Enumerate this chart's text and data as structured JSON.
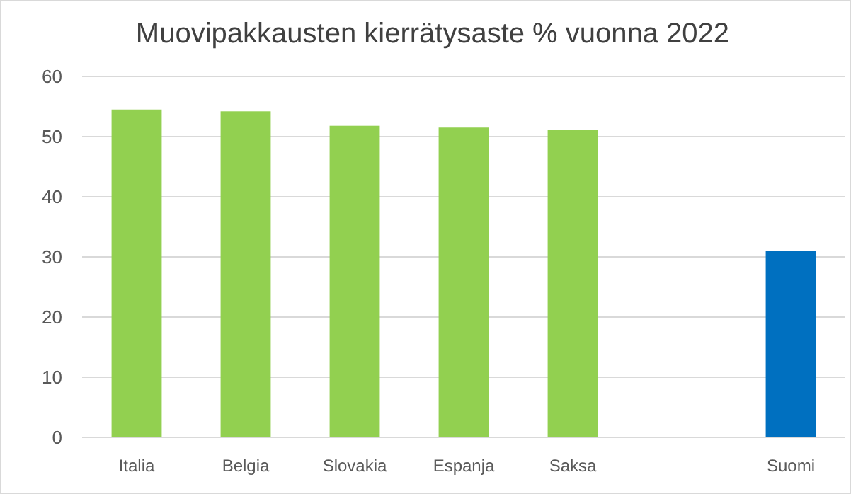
{
  "chart_data": {
    "type": "bar",
    "title": "Muovipakkausten kierrätysaste % vuonna 2022",
    "categories": [
      "Italia",
      "Belgia",
      "Slovakia",
      "Espanja",
      "Saksa",
      null,
      "Suomi"
    ],
    "values": [
      54.5,
      54.2,
      51.8,
      51.5,
      51.1,
      null,
      31.0
    ],
    "colors": [
      "#92d050",
      "#92d050",
      "#92d050",
      "#92d050",
      "#92d050",
      null,
      "#0070c0"
    ],
    "ylim": [
      0,
      60
    ],
    "yticks": [
      0,
      10,
      20,
      30,
      40,
      50,
      60
    ],
    "grid": "y"
  }
}
